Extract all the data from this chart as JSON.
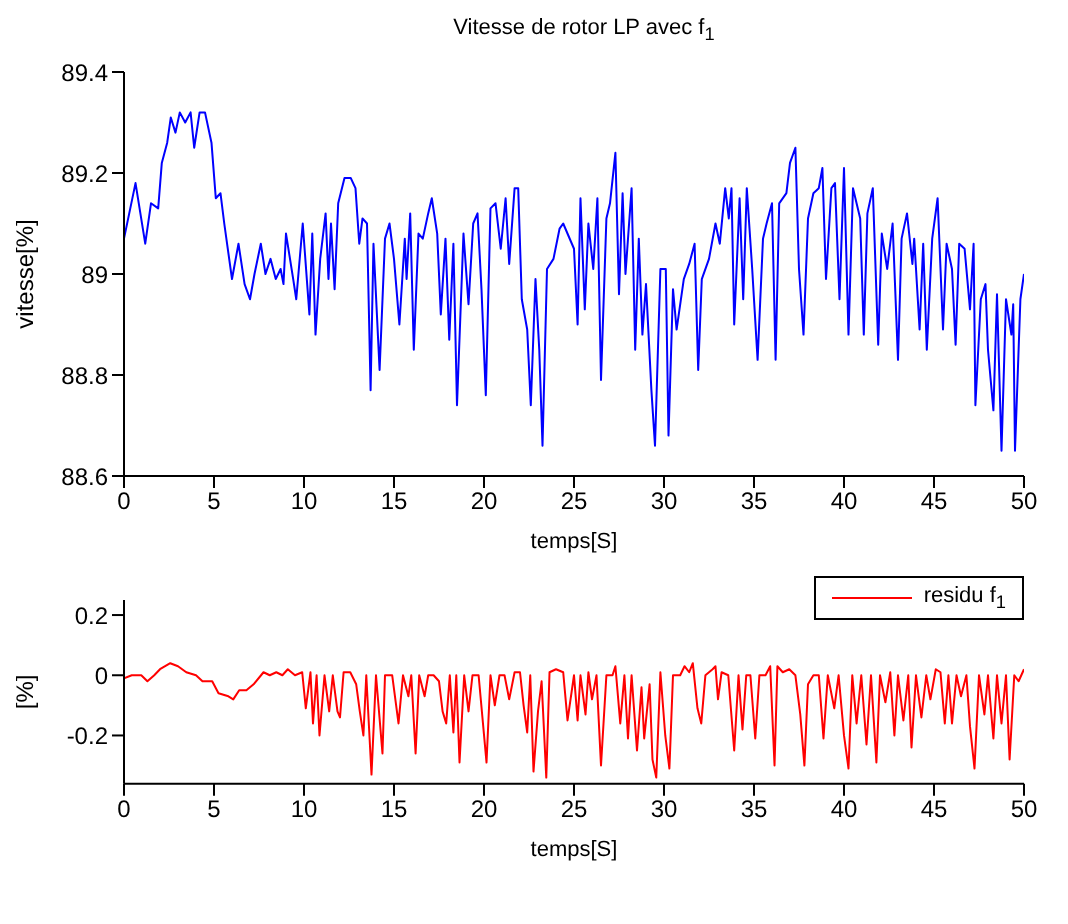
{
  "chart_data": [
    {
      "type": "line",
      "title": "Vitesse de rotor LP avec f$_{1}$",
      "xlabel": "temps[S]",
      "ylabel": "vitesse[%]",
      "xlim": [
        0,
        50
      ],
      "xticks": [
        0,
        5,
        10,
        15,
        20,
        25,
        30,
        35,
        40,
        45,
        50
      ],
      "ylim": [
        88.6,
        89.4
      ],
      "yticks": [
        88.6,
        88.8,
        89,
        89.2,
        89.4
      ],
      "grid": false,
      "legend": false,
      "x": [
        0,
        0.64,
        1.18,
        1.5,
        1.9,
        2.1,
        2.4,
        2.6,
        2.86,
        3.1,
        3.4,
        3.7,
        3.9,
        4.2,
        4.5,
        4.86,
        5.1,
        5.36,
        5.57,
        6.0,
        6.36,
        6.7,
        7.0,
        7.25,
        7.6,
        7.86,
        8.14,
        8.43,
        8.7,
        8.86,
        9.0,
        9.4,
        9.57,
        9.93,
        10.3,
        10.46,
        10.64,
        10.9,
        11.2,
        11.36,
        11.5,
        11.7,
        11.9,
        12.25,
        12.6,
        12.86,
        13.07,
        13.25,
        13.5,
        13.7,
        13.86,
        14.2,
        14.5,
        14.75,
        15.0,
        15.3,
        15.6,
        15.7,
        15.9,
        16.1,
        16.36,
        16.6,
        16.9,
        17.1,
        17.4,
        17.6,
        17.86,
        18.07,
        18.3,
        18.5,
        18.86,
        19.14,
        19.4,
        19.64,
        19.86,
        20.1,
        20.36,
        20.64,
        20.93,
        21.2,
        21.4,
        21.7,
        21.9,
        22.1,
        22.4,
        22.6,
        22.86,
        23.07,
        23.25,
        23.5,
        23.86,
        24.2,
        24.4,
        25,
        25.2,
        25.36,
        25.6,
        25.8,
        26.07,
        26.3,
        26.5,
        26.8,
        27.0,
        27.3,
        27.5,
        27.7,
        27.86,
        28.2,
        28.4,
        28.6,
        28.8,
        29.0,
        29.3,
        29.5,
        29.8,
        30.1,
        30.25,
        30.5,
        30.7,
        31.1,
        31.4,
        31.7,
        31.9,
        32.1,
        32.5,
        32.86,
        33.1,
        33.4,
        33.6,
        33.75,
        33.9,
        34.2,
        34.4,
        34.6,
        34.9,
        35.2,
        35.5,
        35.7,
        36.0,
        36.2,
        36.4,
        36.8,
        37.0,
        37.3,
        37.5,
        37.75,
        38.0,
        38.3,
        38.6,
        38.8,
        39.0,
        39.3,
        39.5,
        39.75,
        40.0,
        40.25,
        40.5,
        40.9,
        41.1,
        41.3,
        41.6,
        41.9,
        42.1,
        42.4,
        42.7,
        43.0,
        43.2,
        43.5,
        43.8,
        43.9,
        44.2,
        44.4,
        44.6,
        44.9,
        45.2,
        45.5,
        45.7,
        46.0,
        46.2,
        46.4,
        46.7,
        47.0,
        47.2,
        47.3,
        47.6,
        47.86,
        48.0,
        48.3,
        48.5,
        48.75,
        49.0,
        49.3,
        49.4,
        49.5,
        49.8,
        50.0
      ],
      "series": [
        {
          "color": "#0000ff",
          "values": [
            89.07,
            89.18,
            89.06,
            89.14,
            89.13,
            89.22,
            89.26,
            89.31,
            89.28,
            89.32,
            89.3,
            89.32,
            89.25,
            89.32,
            89.32,
            89.26,
            89.15,
            89.16,
            89.1,
            88.99,
            89.06,
            88.98,
            88.95,
            89.0,
            89.06,
            89.0,
            89.03,
            88.99,
            89.01,
            88.98,
            89.08,
            88.99,
            88.95,
            89.1,
            88.92,
            89.08,
            88.88,
            89.03,
            89.12,
            88.99,
            89.1,
            88.97,
            89.14,
            89.19,
            89.19,
            89.17,
            89.06,
            89.11,
            89.1,
            88.77,
            89.06,
            88.81,
            89.07,
            89.1,
            89.03,
            88.9,
            89.07,
            88.99,
            89.12,
            88.85,
            89.08,
            89.07,
            89.12,
            89.15,
            89.08,
            88.92,
            89.07,
            88.87,
            89.06,
            88.74,
            89.08,
            88.94,
            89.1,
            89.12,
            88.97,
            88.76,
            89.13,
            89.14,
            89.05,
            89.15,
            89.02,
            89.17,
            89.17,
            88.95,
            88.89,
            88.74,
            88.99,
            88.85,
            88.66,
            89.01,
            89.03,
            89.09,
            89.1,
            89.05,
            88.9,
            89.15,
            88.93,
            89.1,
            89.01,
            89.15,
            88.79,
            89.11,
            89.14,
            89.24,
            88.96,
            89.16,
            89.0,
            89.17,
            88.85,
            89.07,
            88.88,
            88.98,
            88.77,
            88.66,
            89.01,
            89.01,
            88.68,
            88.97,
            88.89,
            88.99,
            89.02,
            89.06,
            88.81,
            88.99,
            89.03,
            89.1,
            89.06,
            89.17,
            89.11,
            89.17,
            88.9,
            89.15,
            88.95,
            89.17,
            89.01,
            88.83,
            89.07,
            89.1,
            89.14,
            88.83,
            89.14,
            89.16,
            89.22,
            89.25,
            89.01,
            88.88,
            89.11,
            89.16,
            89.17,
            89.21,
            88.99,
            89.17,
            89.18,
            88.95,
            89.21,
            88.88,
            89.17,
            89.11,
            88.88,
            89.12,
            89.17,
            88.86,
            89.08,
            89.01,
            89.1,
            88.83,
            89.07,
            89.12,
            89.02,
            89.07,
            88.89,
            89.06,
            88.85,
            89.07,
            89.15,
            88.89,
            89.06,
            89.01,
            88.86,
            89.06,
            89.05,
            88.93,
            89.06,
            88.74,
            88.95,
            88.98,
            88.85,
            88.73,
            88.96,
            88.65,
            88.95,
            88.88,
            88.94,
            88.65,
            88.95,
            89.0
          ]
        }
      ]
    },
    {
      "type": "line",
      "xlabel": "temps[S]",
      "ylabel": "[%]",
      "xlim": [
        0,
        50
      ],
      "xticks": [
        0,
        5,
        10,
        15,
        20,
        25,
        30,
        35,
        40,
        45,
        50
      ],
      "ylim": [
        -0.36,
        0.25
      ],
      "yticks": [
        -0.2,
        0,
        0.2
      ],
      "grid": false,
      "legend": "top right",
      "x": [
        0,
        0.43,
        0.96,
        1.3,
        1.68,
        2.0,
        2.57,
        3.0,
        3.46,
        4.0,
        4.36,
        4.9,
        5.25,
        5.8,
        6.07,
        6.4,
        6.8,
        7.2,
        7.75,
        8.1,
        8.46,
        8.8,
        9.1,
        9.5,
        9.9,
        10.1,
        10.36,
        10.5,
        10.7,
        10.86,
        11.14,
        11.4,
        11.6,
        11.86,
        12.0,
        12.2,
        12.57,
        12.9,
        13.1,
        13.3,
        13.46,
        13.75,
        14.0,
        14.36,
        14.5,
        14.9,
        15.25,
        15.5,
        15.8,
        15.96,
        16.2,
        16.4,
        16.7,
        16.9,
        17.2,
        17.5,
        17.7,
        17.9,
        18.1,
        18.3,
        18.46,
        18.64,
        18.9,
        19.14,
        19.36,
        19.7,
        20.14,
        20.36,
        20.6,
        20.86,
        21.14,
        21.4,
        21.7,
        22.0,
        22.2,
        22.4,
        22.57,
        22.75,
        23.0,
        23.2,
        23.46,
        23.64,
        24.0,
        24.4,
        24.64,
        25,
        25.2,
        25.36,
        25.64,
        25.8,
        26.0,
        26.25,
        26.5,
        26.8,
        27.14,
        27.3,
        27.57,
        27.8,
        28.0,
        28.2,
        28.5,
        28.75,
        28.9,
        29.2,
        29.36,
        29.57,
        29.8,
        30.07,
        30.3,
        30.5,
        30.9,
        31.14,
        31.4,
        31.6,
        31.86,
        32.07,
        32.3,
        32.7,
        32.86,
        33.0,
        33.2,
        33.57,
        33.9,
        34.14,
        34.36,
        34.57,
        34.8,
        35.07,
        35.3,
        35.64,
        35.9,
        36.14,
        36.3,
        36.6,
        36.96,
        37.3,
        37.57,
        37.8,
        38.0,
        38.3,
        38.6,
        38.86,
        39.1,
        39.46,
        39.7,
        40.0,
        40.25,
        40.46,
        40.7,
        40.96,
        41.25,
        41.5,
        41.8,
        42.0,
        42.3,
        42.57,
        42.8,
        43.0,
        43.3,
        43.57,
        43.75,
        44.0,
        44.3,
        44.57,
        44.8,
        45.1,
        45.36,
        45.6,
        45.8,
        46.0,
        46.25,
        46.5,
        46.8,
        47.0,
        47.25,
        47.5,
        47.8,
        48.0,
        48.3,
        48.5,
        48.75,
        49.0,
        49.2,
        49.46,
        49.7,
        50.0
      ],
      "series": [
        {
          "name": "residu f$_{1}$",
          "color": "#ff0000",
          "values": [
            -0.01,
            0,
            0,
            -0.02,
            0,
            0.02,
            0.04,
            0.03,
            0.01,
            0,
            -0.02,
            -0.02,
            -0.06,
            -0.07,
            -0.08,
            -0.05,
            -0.05,
            -0.03,
            0.01,
            0,
            0.01,
            0,
            0.02,
            0,
            0.01,
            -0.11,
            0.01,
            -0.16,
            0,
            -0.2,
            0,
            -0.12,
            0,
            -0.12,
            -0.14,
            0.01,
            0.01,
            -0.03,
            -0.12,
            -0.2,
            0,
            -0.33,
            0,
            -0.26,
            0,
            0,
            -0.16,
            0,
            -0.07,
            0,
            -0.26,
            0,
            -0.07,
            0,
            0,
            -0.02,
            -0.12,
            -0.16,
            0,
            -0.19,
            0,
            -0.29,
            0,
            -0.12,
            0,
            0,
            -0.29,
            0,
            -0.1,
            0,
            0,
            -0.08,
            0.01,
            0.01,
            -0.1,
            -0.19,
            0,
            -0.32,
            -0.12,
            -0.02,
            -0.34,
            0.01,
            0.02,
            0.01,
            -0.15,
            0,
            -0.15,
            0,
            -0.13,
            0.01,
            -0.08,
            0,
            -0.3,
            0,
            0,
            0.03,
            -0.16,
            0,
            -0.21,
            0,
            -0.25,
            -0.04,
            -0.21,
            -0.03,
            -0.28,
            -0.34,
            0.01,
            -0.2,
            -0.31,
            0,
            0,
            0.03,
            0.01,
            0.04,
            -0.11,
            -0.16,
            0,
            0.02,
            0.03,
            -0.08,
            0.01,
            0,
            -0.25,
            0,
            -0.18,
            0,
            0,
            -0.21,
            0,
            0,
            0.03,
            -0.3,
            0.03,
            0.01,
            0.02,
            0,
            -0.13,
            -0.3,
            -0.03,
            0,
            0,
            -0.21,
            0,
            -0.11,
            0,
            -0.2,
            -0.31,
            0,
            -0.16,
            0,
            -0.23,
            0,
            -0.29,
            0,
            -0.09,
            0.01,
            -0.2,
            0,
            -0.15,
            0,
            -0.24,
            0,
            -0.14,
            0,
            -0.08,
            0.02,
            0.01,
            -0.16,
            0,
            -0.16,
            0,
            -0.07,
            0,
            -0.17,
            -0.31,
            0,
            -0.13,
            0,
            -0.21,
            0,
            -0.16,
            0,
            -0.28,
            0,
            -0.02,
            0.02
          ]
        }
      ]
    }
  ]
}
